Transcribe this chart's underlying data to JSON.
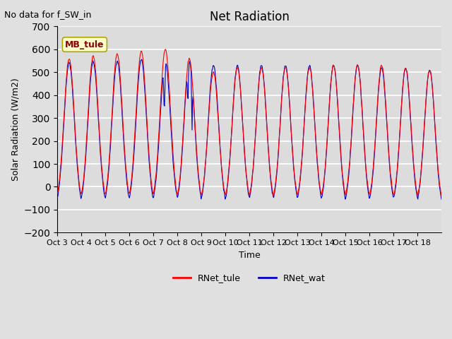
{
  "title": "Net Radiation",
  "subtitle": "No data for f_SW_in",
  "ylabel": "Solar Radiation (W/m2)",
  "xlabel": "Time",
  "ylim": [
    -200,
    700
  ],
  "yticks": [
    -200,
    -100,
    0,
    100,
    200,
    300,
    400,
    500,
    600,
    700
  ],
  "xtick_labels": [
    "Oct 3",
    "Oct 4",
    "Oct 5",
    "Oct 6",
    "Oct 7",
    "Oct 8",
    "Oct 9",
    "Oct 10",
    "Oct 11",
    "Oct 12",
    "Oct 13",
    "Oct 14",
    "Oct 15",
    "Oct 16",
    "Oct 17",
    "Oct 18"
  ],
  "color_tule": "#ff0000",
  "color_wat": "#0000cc",
  "legend_label_tule": "RNet_tule",
  "legend_label_wat": "RNet_wat",
  "annotation_text": "MB_tule",
  "background_color": "#e0e0e0",
  "plot_bg_color": "#dcdcdc",
  "grid_color": "#ffffff",
  "n_days": 16,
  "samples_per_day": 48,
  "night_value_tule": -80,
  "night_value_wat": -95,
  "day_peaks_tule": [
    560,
    570,
    580,
    590,
    600,
    560,
    500,
    520,
    520,
    520,
    520,
    530,
    535,
    530,
    520,
    510
  ],
  "day_peaks_wat": [
    540,
    545,
    550,
    555,
    550,
    545,
    530,
    530,
    530,
    530,
    530,
    530,
    530,
    520,
    515,
    510
  ]
}
